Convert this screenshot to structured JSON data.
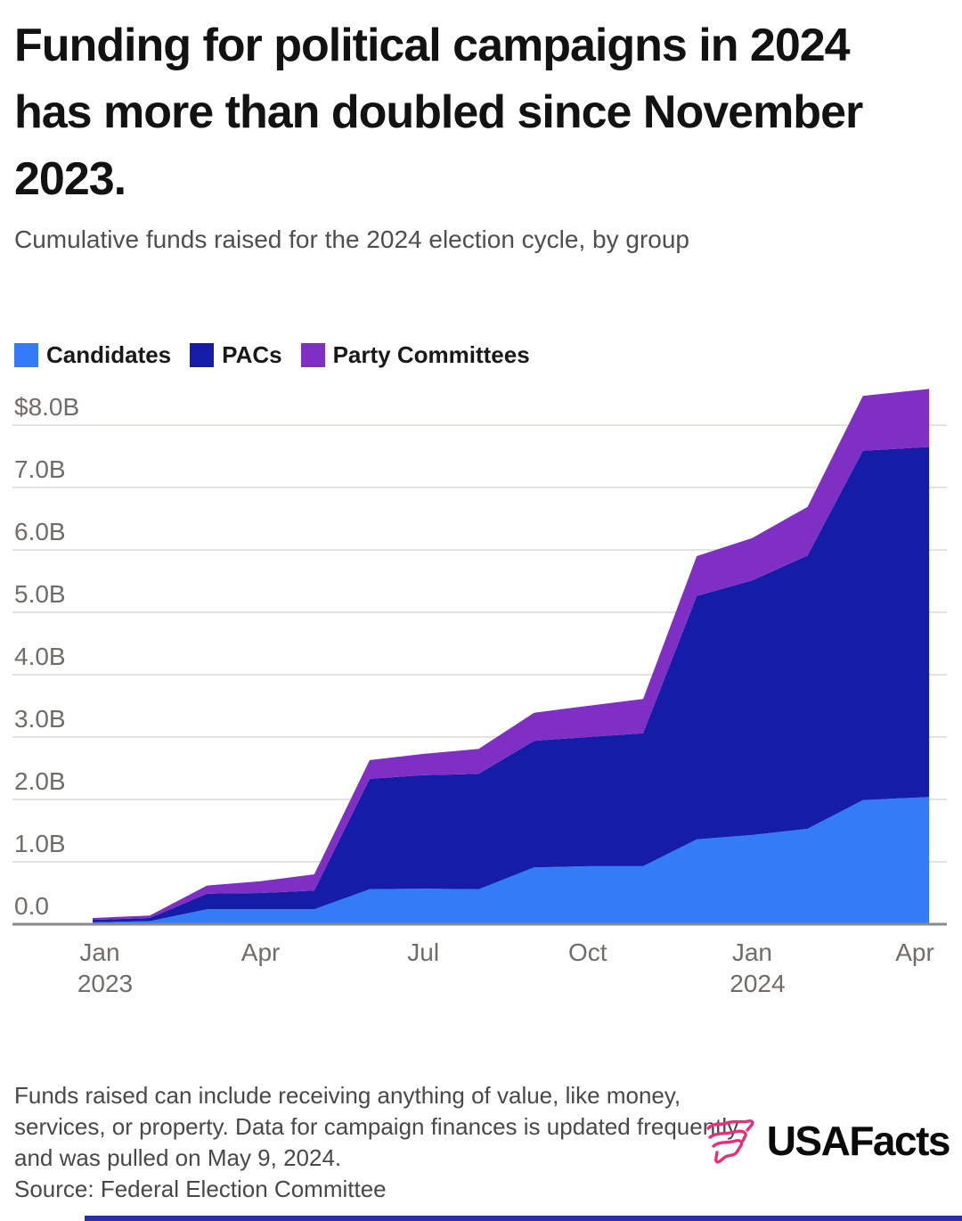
{
  "header": {
    "title": "Funding for political campaigns in 2024 has more than doubled since November 2023.",
    "subtitle": "Cumulative funds raised for the 2024 election cycle, by group"
  },
  "chart_data": {
    "type": "area",
    "stacked": true,
    "title": "Cumulative funds raised for the 2024 election cycle, by group",
    "unit": "billions of US dollars",
    "ylim": [
      0,
      8.6
    ],
    "grid": "horizontal",
    "legend_position": "top-left",
    "series": [
      {
        "name": "Candidates",
        "color": "#347bf7"
      },
      {
        "name": "PACs",
        "color": "#141ca8"
      },
      {
        "name": "Party Committees",
        "color": "#7f2fc3"
      }
    ],
    "y_axis": {
      "ticks": [
        {
          "label": "$8.0B",
          "value": 8
        },
        {
          "label": "7.0B",
          "value": 7
        },
        {
          "label": "6.0B",
          "value": 6
        },
        {
          "label": "5.0B",
          "value": 5
        },
        {
          "label": "4.0B",
          "value": 4
        },
        {
          "label": "3.0B",
          "value": 3
        },
        {
          "label": "2.0B",
          "value": 2
        },
        {
          "label": "1.0B",
          "value": 1
        },
        {
          "label": "0.0",
          "value": 0
        }
      ]
    },
    "x_axis": {
      "ticks": [
        {
          "label": "Jan",
          "year": "2023",
          "day": 0
        },
        {
          "label": "Apr",
          "day": 90
        },
        {
          "label": "Jul",
          "day": 181
        },
        {
          "label": "Oct",
          "day": 273
        },
        {
          "label": "Jan",
          "year": "2024",
          "day": 365
        },
        {
          "label": "Apr",
          "day": 456
        }
      ]
    },
    "points": [
      {
        "label": "late Dec 2022",
        "day": -4,
        "candidates": 0.03,
        "pacs": 0.04,
        "party_committees": 0.03
      },
      {
        "label": "Feb 2023",
        "day": 28,
        "candidates": 0.05,
        "pacs": 0.05,
        "party_committees": 0.04
      },
      {
        "label": "Mar 2023",
        "day": 60,
        "candidates": 0.24,
        "pacs": 0.25,
        "party_committees": 0.13
      },
      {
        "label": "Apr 2023",
        "day": 90,
        "candidates": 0.24,
        "pacs": 0.26,
        "party_committees": 0.19
      },
      {
        "label": "May 2023",
        "day": 120,
        "candidates": 0.24,
        "pacs": 0.3,
        "party_committees": 0.26
      },
      {
        "label": "Jun 2023",
        "day": 151,
        "candidates": 0.56,
        "pacs": 1.77,
        "party_committees": 0.3
      },
      {
        "label": "Jul 2023",
        "day": 181,
        "candidates": 0.57,
        "pacs": 1.82,
        "party_committees": 0.34
      },
      {
        "label": "Aug 2023",
        "day": 212,
        "candidates": 0.56,
        "pacs": 1.85,
        "party_committees": 0.4
      },
      {
        "label": "Sep 2023",
        "day": 243,
        "candidates": 0.91,
        "pacs": 2.03,
        "party_committees": 0.45
      },
      {
        "label": "Oct 2023",
        "day": 273,
        "candidates": 0.93,
        "pacs": 2.07,
        "party_committees": 0.5
      },
      {
        "label": "Nov 2023",
        "day": 304,
        "candidates": 0.93,
        "pacs": 2.13,
        "party_committees": 0.55
      },
      {
        "label": "Dec 2023",
        "day": 334,
        "candidates": 1.36,
        "pacs": 3.9,
        "party_committees": 0.64
      },
      {
        "label": "Jan 2024",
        "day": 365,
        "candidates": 1.43,
        "pacs": 4.08,
        "party_committees": 0.68
      },
      {
        "label": "Feb 2024",
        "day": 396,
        "candidates": 1.53,
        "pacs": 4.38,
        "party_committees": 0.78
      },
      {
        "label": "Mar 2024",
        "day": 427,
        "candidates": 1.99,
        "pacs": 5.6,
        "party_committees": 0.88
      },
      {
        "label": "mid-Apr 2024",
        "day": 464,
        "candidates": 2.04,
        "pacs": 5.61,
        "party_committees": 0.93
      }
    ]
  },
  "footer": {
    "note": "Funds raised can include receiving anything of value, like money, services, or property. Data for campaign finances is updated frequently and was pulled on May 9, 2024.",
    "source": "Source: Federal Election Committee",
    "logo_text": "USAFacts"
  },
  "colors": {
    "candidates": "#347bf7",
    "pacs": "#141ca8",
    "party_committees": "#7f2fc3",
    "gridline": "#e5e3de",
    "baseline": "#8a8a8a",
    "axis_text": "#6f6d68",
    "logo_pink": "#ed2c7c",
    "bottom_bar": "#2a2fae"
  }
}
